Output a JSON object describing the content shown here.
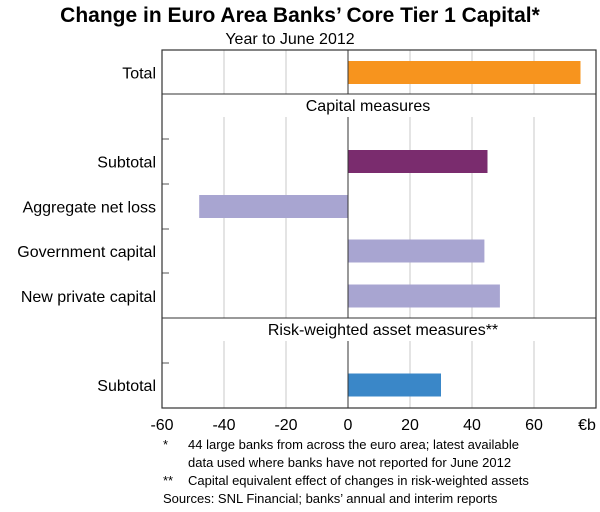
{
  "chart_data": {
    "type": "bar",
    "orientation": "horizontal",
    "title": "Change in Euro Area Banks’ Core Tier 1 Capital*",
    "subtitle": "Year to June 2012",
    "unit": "€b",
    "xlim": [
      -60,
      80
    ],
    "xticks": [
      "-60",
      "-40",
      "-20",
      "0",
      "20",
      "40",
      "60",
      "€b"
    ],
    "grid": true,
    "panels": [
      {
        "heading": "",
        "categories": [
          "Total"
        ],
        "values": [
          75
        ],
        "colors": [
          "#f7941e"
        ]
      },
      {
        "heading": "Capital measures",
        "categories": [
          "Subtotal",
          "Aggregate net loss",
          "Government capital",
          "New private capital"
        ],
        "values": [
          45,
          -48,
          44,
          49
        ],
        "colors": [
          "#7a2c6e",
          "#a8a5d1",
          "#a8a5d1",
          "#a8a5d1"
        ]
      },
      {
        "heading": "Risk-weighted asset measures**",
        "categories": [
          "Subtotal"
        ],
        "values": [
          30
        ],
        "colors": [
          "#3a87c8"
        ]
      }
    ],
    "notes": [
      {
        "mark": "*",
        "text": "44 large banks from across the euro area; latest available"
      },
      {
        "mark": "",
        "text": "data used where banks have not reported for June 2012"
      },
      {
        "mark": "**",
        "text": "Capital equivalent effect of changes in risk-weighted assets"
      },
      {
        "mark": "",
        "text": "Sources: SNL Financial; banks’ annual and interim reports"
      }
    ]
  }
}
